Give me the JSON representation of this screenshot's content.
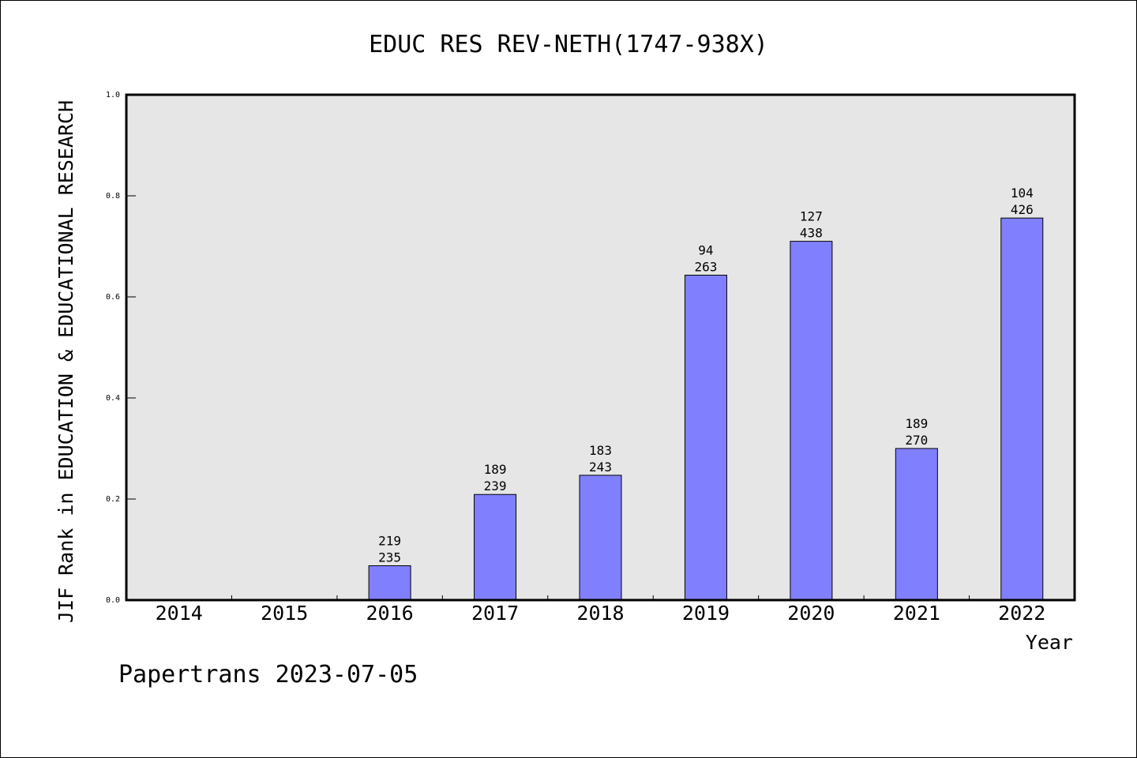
{
  "chart_data": {
    "type": "bar",
    "title": "EDUC RES REV-NETH(1747-938X)",
    "xlabel": "Year",
    "ylabel": "JIF Rank in EDUCATION & EDUCATIONAL RESEARCH",
    "ylim": [
      0,
      1.0
    ],
    "yticks": [
      "0.0",
      "0.2",
      "0.4",
      "0.6",
      "0.8",
      "1.0"
    ],
    "categories": [
      "2014",
      "2015",
      "2016",
      "2017",
      "2018",
      "2019",
      "2020",
      "2021",
      "2022"
    ],
    "values": [
      null,
      null,
      0.068,
      0.209,
      0.247,
      0.643,
      0.71,
      0.3,
      0.756
    ],
    "rank_labels": [
      null,
      null,
      [
        "219",
        "235"
      ],
      [
        "189",
        "239"
      ],
      [
        "183",
        "243"
      ],
      [
        "94",
        "263"
      ],
      [
        "127",
        "438"
      ],
      [
        "189",
        "270"
      ],
      [
        "104",
        "426"
      ]
    ],
    "bar_color": "#8080ff",
    "plot_background": "#e6e6e6",
    "grid": false
  },
  "footer": "Papertrans 2023-07-05"
}
